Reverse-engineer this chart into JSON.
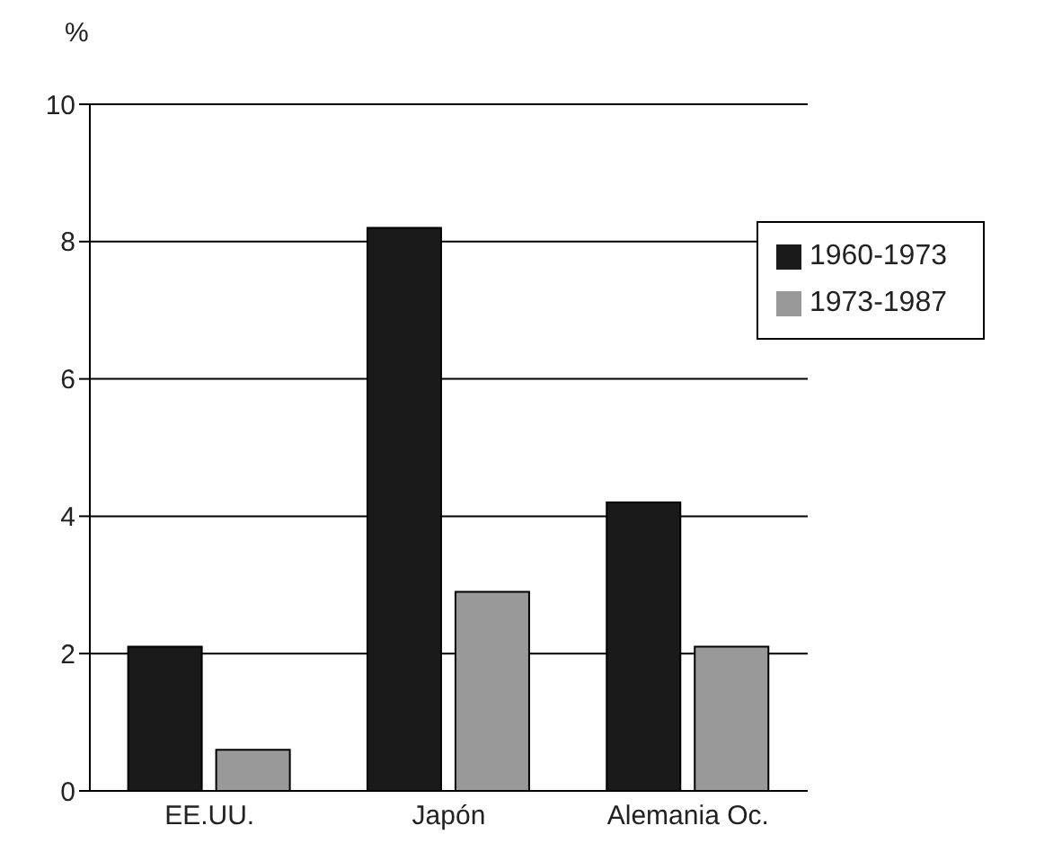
{
  "chart_data": {
    "type": "bar",
    "ylabel": "%",
    "categories": [
      "EE.UU.",
      "Japón",
      "Alemania Oc."
    ],
    "series": [
      {
        "name": "1960-1973",
        "color": "#1a1a1a",
        "values": [
          2.1,
          8.2,
          4.2
        ]
      },
      {
        "name": "1973-1987",
        "color": "#999999",
        "values": [
          0.6,
          2.9,
          2.1
        ]
      }
    ],
    "ylim": [
      0,
      10
    ],
    "yticks": [
      0,
      2,
      4,
      6,
      8,
      10
    ],
    "grid": "y",
    "legend": "top right"
  }
}
